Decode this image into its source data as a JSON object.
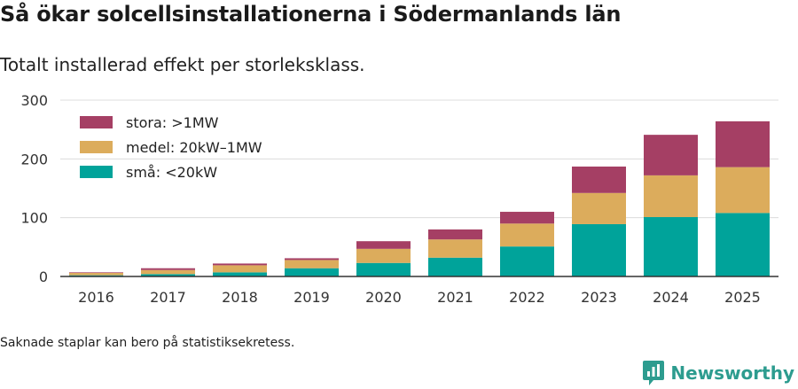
{
  "title": "Så ökar solcellsinstallationerna i Södermanlands län",
  "subtitle": "Totalt installerad effekt per storleksklass.",
  "note": "Saknade staplar kan bero på statistiksekretess.",
  "brand": {
    "name": "Newsworthy",
    "icon": "newsworthy-logo-icon",
    "color": "#2d9c8f"
  },
  "chart_data": {
    "type": "bar",
    "stacked": true,
    "title": "Så ökar solcellsinstallationerna i Södermanlands län",
    "subtitle": "Totalt installerad effekt per storleksklass.",
    "xlabel": "",
    "ylabel": "",
    "ylim": [
      0,
      300
    ],
    "yticks": [
      0,
      100,
      200,
      300
    ],
    "grid": true,
    "legend_position": "top-left",
    "categories": [
      "2016",
      "2017",
      "2018",
      "2019",
      "2020",
      "2021",
      "2022",
      "2023",
      "2024",
      "2025"
    ],
    "series": [
      {
        "name": "små: <20kW",
        "color": "#00a39a",
        "values": [
          2,
          4,
          7,
          14,
          23,
          32,
          51,
          89,
          101,
          108
        ]
      },
      {
        "name": "medel: 20kW–1MW",
        "color": "#dcac5c",
        "values": [
          4,
          7,
          12,
          14,
          24,
          31,
          39,
          53,
          71,
          78
        ]
      },
      {
        "name": "stora: >1MW",
        "color": "#a53f64",
        "values": [
          1,
          3,
          3,
          3,
          13,
          17,
          20,
          45,
          69,
          78
        ]
      }
    ],
    "legend_order": [
      "stora: >1MW",
      "medel: 20kW–1MW",
      "små: <20kW"
    ]
  }
}
